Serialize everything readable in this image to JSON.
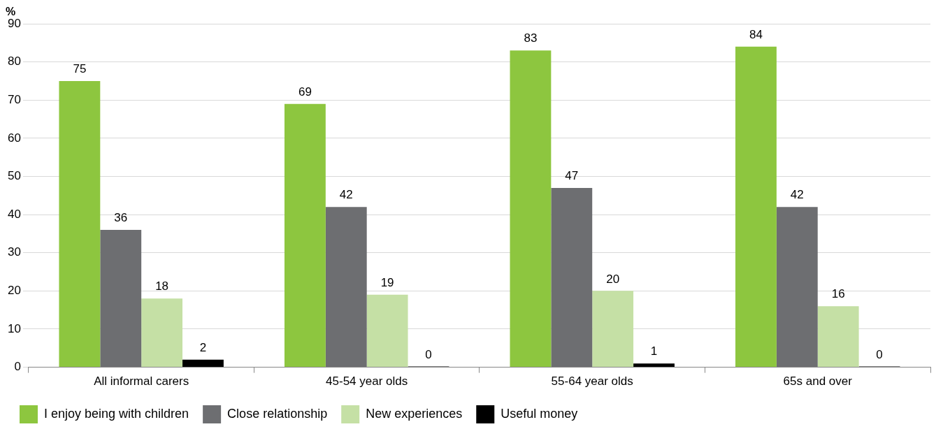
{
  "chart_data": {
    "type": "bar",
    "ylabel": "%",
    "categories": [
      "All informal carers",
      "45-54 year olds",
      "55-64 year olds",
      "65s and over"
    ],
    "series": [
      {
        "name": "I enjoy being with children",
        "color": "#8dc63f",
        "values": [
          75,
          69,
          83,
          84
        ]
      },
      {
        "name": "Close relationship",
        "color": "#6d6e71",
        "values": [
          36,
          42,
          47,
          42
        ]
      },
      {
        "name": "New experiences",
        "color": "#c5e0a5",
        "values": [
          18,
          19,
          20,
          16
        ]
      },
      {
        "name": "Useful money",
        "color": "#000000",
        "values": [
          2,
          0,
          1,
          0
        ]
      }
    ],
    "ylim": [
      0,
      90
    ],
    "yticks": [
      0,
      10,
      20,
      30,
      40,
      50,
      60,
      70,
      80,
      90
    ],
    "grid": "y",
    "legend": "bottom left",
    "data_labels": true
  }
}
